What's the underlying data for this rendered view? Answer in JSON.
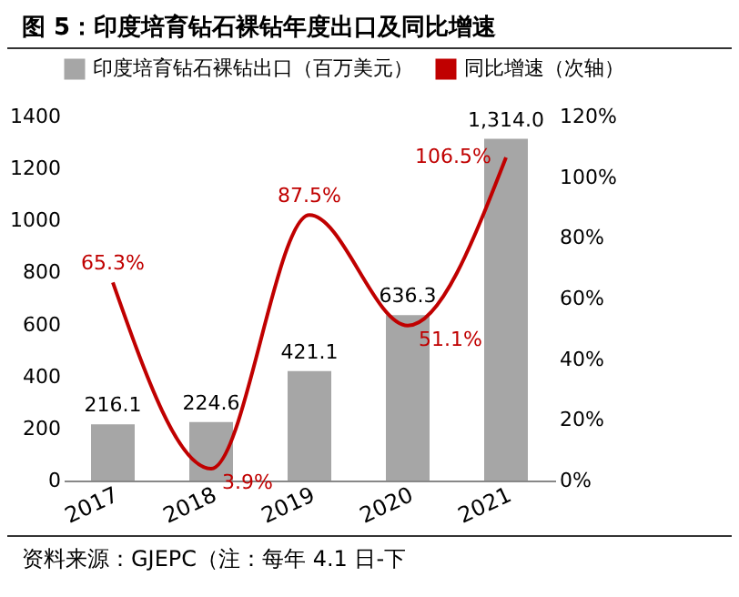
{
  "chart_data": {
    "type": "bar",
    "title": "图 5：印度培育钻石裸钻年度出口及同比增速",
    "categories": [
      "2017",
      "2018",
      "2019",
      "2020",
      "2021"
    ],
    "series": [
      {
        "name": "印度培育钻石裸钻出口（百万美元）",
        "color": "#a6a6a6",
        "values": [
          216.1,
          224.6,
          421.1,
          636.3,
          1314.0
        ],
        "value_labels": [
          "216.1",
          "224.6",
          "421.1",
          "636.3",
          "1,314.0"
        ]
      },
      {
        "name": "同比增速（次轴）",
        "type": "line",
        "axis": "y2",
        "color": "#c00000",
        "values": [
          65.3,
          3.9,
          87.5,
          51.1,
          106.5
        ],
        "value_labels": [
          "65.3%",
          "3.9%",
          "87.5%",
          "51.1%",
          "106.5%"
        ]
      }
    ],
    "ylim": [
      0,
      1400
    ],
    "yticks": [
      0,
      200,
      400,
      600,
      800,
      1000,
      1200,
      1400
    ],
    "y2lim": [
      0,
      120
    ],
    "y2ticks": [
      {
        "value": 0,
        "label": "0%"
      },
      {
        "value": 20,
        "label": "20%"
      },
      {
        "value": 40,
        "label": "40%"
      },
      {
        "value": 60,
        "label": "60%"
      },
      {
        "value": 80,
        "label": "80%"
      },
      {
        "value": 100,
        "label": "100%"
      },
      {
        "value": 120,
        "label": "120%"
      }
    ],
    "legend": "top",
    "grid": false,
    "annotations": [
      "资料来源：GJEPC（注：每年 4.1 日-下"
    ]
  }
}
